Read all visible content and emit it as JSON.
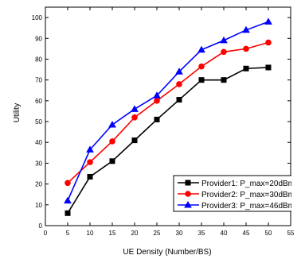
{
  "chart_data": {
    "type": "line",
    "title": "",
    "xlabel": "UE Density (Number/BS)",
    "ylabel": "Utility",
    "xlim": [
      0,
      55
    ],
    "ylim": [
      0,
      105
    ],
    "xticks": [
      0,
      5,
      10,
      15,
      20,
      25,
      30,
      35,
      40,
      45,
      50,
      55
    ],
    "yticks": [
      0,
      10,
      20,
      30,
      40,
      50,
      60,
      70,
      80,
      90,
      100
    ],
    "grid": false,
    "legend_position": "lower-right",
    "x": [
      5,
      10,
      15,
      20,
      25,
      30,
      35,
      40,
      45,
      50
    ],
    "series": [
      {
        "name": "Provider1: P_max=20dBm",
        "color": "#000000",
        "marker": "square",
        "values": [
          6,
          23.5,
          31,
          41,
          51,
          60.5,
          70,
          70,
          75.5,
          76
        ]
      },
      {
        "name": "Provider2: P_max=30dBm",
        "color": "#ff0000",
        "marker": "circle",
        "values": [
          20.5,
          30.5,
          40.5,
          52,
          60,
          68,
          76.5,
          83.5,
          85,
          88
        ]
      },
      {
        "name": "Provider3: P_max=46dBm",
        "color": "#0000ff",
        "marker": "triangle",
        "values": [
          12,
          36.5,
          48.5,
          56,
          62.5,
          74,
          84.5,
          89,
          94,
          98
        ]
      }
    ]
  }
}
